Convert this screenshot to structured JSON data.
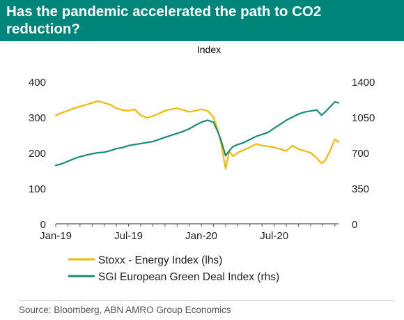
{
  "title": "Has the pandemic accelerated the path to CO2 reduction?",
  "source": "Source: Bloomberg, ABN AMRO Group Economics",
  "colors": {
    "header": "#00857a",
    "series_1": "#f2b800",
    "series_2": "#168c78",
    "axis": "#555555"
  },
  "chart_data": {
    "type": "line",
    "ylabel": "Index",
    "x_tick_labels": [
      "Jan-19",
      "Jul-19",
      "Jan-20",
      "Jul-20"
    ],
    "x_ticks_month_index": [
      0,
      6,
      12,
      18
    ],
    "x_range_months": [
      0,
      23.3
    ],
    "y_left": {
      "range": [
        0,
        400
      ],
      "ticks": [
        0,
        100,
        200,
        300,
        400
      ]
    },
    "y_right": {
      "range": [
        0,
        1400
      ],
      "ticks": [
        0,
        350,
        700,
        1050,
        1400
      ]
    },
    "grid": false,
    "legend_position": "bottom-left",
    "series": [
      {
        "name": "Stoxx - Energy Index (lhs)",
        "axis": "left",
        "x_months": [
          0,
          0.5,
          1,
          1.5,
          2,
          2.5,
          3,
          3.5,
          4,
          4.5,
          5,
          5.5,
          6,
          6.5,
          7,
          7.5,
          8,
          8.5,
          9,
          9.5,
          10,
          10.5,
          11,
          11.5,
          12,
          12.5,
          13,
          13.3,
          13.6,
          14,
          14.3,
          14.6,
          15,
          15.5,
          16,
          16.5,
          17,
          17.5,
          18,
          18.5,
          19,
          19.5,
          20,
          20.5,
          21,
          21.5,
          21.9,
          22.2,
          22.6,
          23,
          23.3
        ],
        "y": [
          305,
          312,
          318,
          325,
          330,
          335,
          340,
          345,
          340,
          335,
          325,
          320,
          318,
          322,
          305,
          298,
          303,
          310,
          318,
          322,
          325,
          320,
          315,
          318,
          322,
          318,
          300,
          270,
          230,
          155,
          205,
          190,
          200,
          208,
          215,
          225,
          220,
          218,
          215,
          210,
          205,
          220,
          210,
          205,
          200,
          185,
          170,
          178,
          205,
          238,
          230
        ]
      },
      {
        "name": "SGI European Green Deal Index (rhs)",
        "axis": "right",
        "x_months": [
          0,
          0.5,
          1,
          1.5,
          2,
          2.5,
          3,
          3.5,
          4,
          4.5,
          5,
          5.5,
          6,
          6.5,
          7,
          7.5,
          8,
          8.5,
          9,
          9.5,
          10,
          10.5,
          11,
          11.5,
          12,
          12.5,
          13,
          13.3,
          13.6,
          14,
          14.3,
          14.6,
          15,
          15.5,
          16,
          16.5,
          17,
          17.5,
          18,
          18.5,
          19,
          19.5,
          20,
          20.5,
          21,
          21.5,
          21.9,
          22.2,
          22.6,
          23,
          23.3
        ],
        "y": [
          575,
          590,
          615,
          640,
          660,
          675,
          690,
          700,
          705,
          720,
          740,
          750,
          770,
          780,
          790,
          800,
          810,
          830,
          850,
          870,
          890,
          910,
          935,
          970,
          1000,
          1020,
          1000,
          920,
          830,
          670,
          720,
          760,
          780,
          800,
          830,
          860,
          880,
          900,
          940,
          980,
          1020,
          1050,
          1080,
          1100,
          1110,
          1120,
          1070,
          1100,
          1150,
          1200,
          1190
        ]
      }
    ]
  }
}
